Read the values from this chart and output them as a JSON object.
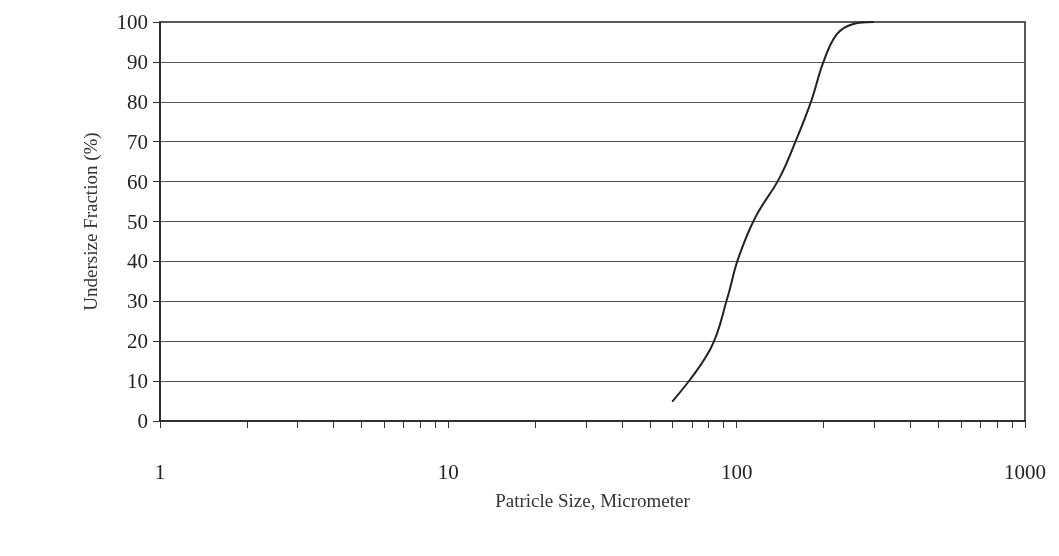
{
  "chart_data": {
    "type": "line",
    "xlabel": "Patricle Size, Micrometer",
    "ylabel": "Undersize Fraction (%)",
    "series": [
      {
        "color": "#222222",
        "x": [
          60,
          81,
          93,
          101,
          116,
          141,
          162,
          182,
          200,
          223,
          254,
          297
        ],
        "values": [
          5,
          18,
          31,
          40.5,
          51,
          61,
          71,
          80.5,
          90,
          97,
          99.5,
          100
        ]
      }
    ],
    "log": "x",
    "xlim": [
      1,
      1000
    ],
    "xticks": [
      1,
      {
        "value": 2,
        "label": null
      },
      {
        "value": 3,
        "label": null
      },
      {
        "value": 4,
        "label": null
      },
      {
        "value": 5,
        "label": null
      },
      {
        "value": 6,
        "label": null
      },
      {
        "value": 7,
        "label": null
      },
      {
        "value": 8,
        "label": null
      },
      {
        "value": 9,
        "label": null
      },
      10,
      {
        "value": 20,
        "label": null
      },
      {
        "value": 30,
        "label": null
      },
      {
        "value": 40,
        "label": null
      },
      {
        "value": 50,
        "label": null
      },
      {
        "value": 60,
        "label": null
      },
      {
        "value": 70,
        "label": null
      },
      {
        "value": 80,
        "label": null
      },
      {
        "value": 90,
        "label": null
      },
      100,
      {
        "value": 200,
        "label": null
      },
      {
        "value": 300,
        "label": null
      },
      {
        "value": 400,
        "label": null
      },
      {
        "value": 500,
        "label": null
      },
      {
        "value": 600,
        "label": null
      },
      {
        "value": 700,
        "label": null
      },
      {
        "value": 800,
        "label": null
      },
      {
        "value": 900,
        "label": null
      },
      1000
    ],
    "ylim": [
      0,
      100
    ],
    "yticks": [
      0,
      10,
      20,
      30,
      40,
      50,
      60,
      70,
      80,
      90,
      100
    ],
    "grid": "y",
    "marker": "none",
    "line_style": "solid"
  }
}
